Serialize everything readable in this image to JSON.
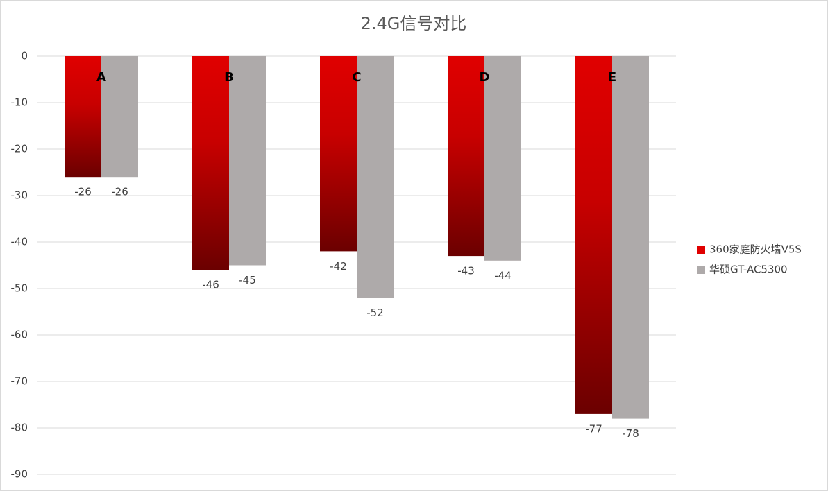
{
  "chart_data": {
    "type": "bar",
    "title": "2.4G信号对比",
    "categories": [
      "A",
      "B",
      "C",
      "D",
      "E"
    ],
    "series": [
      {
        "name": "360家庭防火墙V5S",
        "color": "#e00000",
        "values": [
          -26,
          -46,
          -42,
          -43,
          -77
        ]
      },
      {
        "name": "华硕GT-AC5300",
        "color": "#aeaaaa",
        "values": [
          -26,
          -45,
          -52,
          -44,
          -78
        ]
      }
    ],
    "ylim": [
      -90,
      0
    ],
    "yticks": [
      0,
      -10,
      -20,
      -30,
      -40,
      -50,
      -60,
      -70,
      -80,
      -90
    ],
    "grid": true,
    "legend": "right"
  }
}
